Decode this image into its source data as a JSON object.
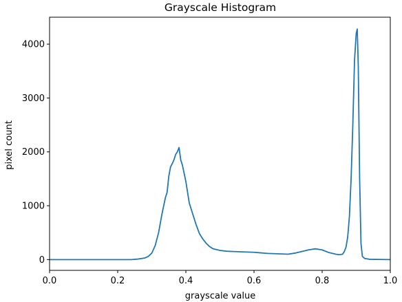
{
  "chart_data": {
    "type": "line",
    "title": "Grayscale Histogram",
    "xlabel": "grayscale value",
    "ylabel": "pixel count",
    "xlim": [
      0,
      1
    ],
    "ylim": [
      -200,
      4500
    ],
    "grid": false,
    "legend": "none",
    "x_ticks": [
      {
        "value": 0.0,
        "label": "0.0"
      },
      {
        "value": 0.2,
        "label": "0.2"
      },
      {
        "value": 0.4,
        "label": "0.4"
      },
      {
        "value": 0.6,
        "label": "0.6"
      },
      {
        "value": 0.8,
        "label": "0.8"
      },
      {
        "value": 1.0,
        "label": "1.0"
      }
    ],
    "y_ticks": [
      {
        "value": 0,
        "label": "0"
      },
      {
        "value": 1000,
        "label": "1000"
      },
      {
        "value": 2000,
        "label": "2000"
      },
      {
        "value": 3000,
        "label": "3000"
      },
      {
        "value": 4000,
        "label": "4000"
      }
    ],
    "series": [
      {
        "color": "#1f77b4",
        "x": [
          0.0,
          0.1,
          0.2,
          0.24,
          0.26,
          0.28,
          0.29,
          0.3,
          0.31,
          0.32,
          0.33,
          0.34,
          0.345,
          0.35,
          0.355,
          0.36,
          0.365,
          0.37,
          0.375,
          0.38,
          0.385,
          0.39,
          0.395,
          0.4,
          0.405,
          0.41,
          0.415,
          0.42,
          0.43,
          0.44,
          0.45,
          0.46,
          0.47,
          0.48,
          0.5,
          0.52,
          0.54,
          0.56,
          0.58,
          0.6,
          0.62,
          0.64,
          0.66,
          0.68,
          0.7,
          0.72,
          0.74,
          0.76,
          0.78,
          0.8,
          0.82,
          0.84,
          0.85,
          0.86,
          0.865,
          0.87,
          0.875,
          0.88,
          0.885,
          0.89,
          0.895,
          0.9,
          0.903,
          0.906,
          0.91,
          0.914,
          0.918,
          0.925,
          0.94,
          1.0
        ],
        "y": [
          0,
          0,
          0,
          0,
          10,
          30,
          60,
          120,
          260,
          500,
          850,
          1150,
          1250,
          1550,
          1720,
          1780,
          1850,
          1950,
          2000,
          2080,
          1850,
          1750,
          1600,
          1450,
          1250,
          1050,
          950,
          850,
          650,
          480,
          380,
          300,
          240,
          200,
          170,
          155,
          150,
          145,
          140,
          135,
          125,
          115,
          110,
          105,
          100,
          120,
          150,
          180,
          200,
          180,
          130,
          100,
          90,
          100,
          150,
          230,
          420,
          800,
          1500,
          2500,
          3700,
          4200,
          4280,
          3600,
          1500,
          300,
          60,
          20,
          5,
          0
        ]
      }
    ]
  }
}
